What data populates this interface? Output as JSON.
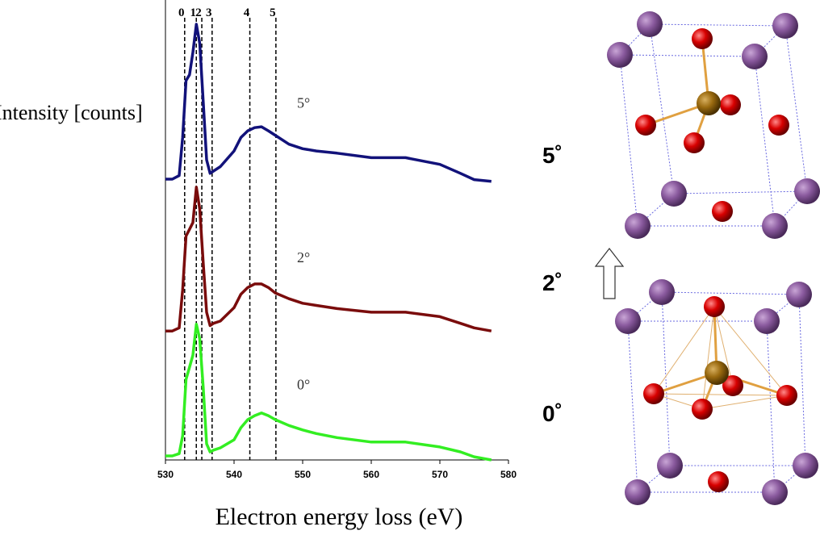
{
  "chart_data": {
    "type": "line",
    "x_label": "Electron energy loss (eV)",
    "y_label": "Intensity [counts]",
    "xlim": [
      530,
      580
    ],
    "xticks": [
      530,
      540,
      550,
      560,
      570,
      580
    ],
    "ylim": [
      0,
      100
    ],
    "x": [
      530,
      531,
      532,
      532.5,
      533,
      533.5,
      534,
      534.5,
      535,
      535.5,
      536,
      536.5,
      537,
      538,
      540,
      541,
      542,
      543,
      544,
      545,
      546,
      548,
      550,
      552,
      555,
      560,
      565,
      570,
      573,
      575,
      577.5
    ],
    "series": [
      {
        "name": "5°",
        "color": "#12127a",
        "values": [
          62.7,
          62.7,
          63.5,
          72,
          84.7,
          86,
          91,
          97.3,
          93,
          80,
          67,
          64,
          64.5,
          65.5,
          69,
          72,
          73.5,
          74.2,
          74.4,
          73.5,
          72.5,
          70.5,
          69.5,
          69,
          68.5,
          67.5,
          67.5,
          66,
          64,
          62.6,
          62.2
        ]
      },
      {
        "name": "2°",
        "color": "#7a0c0c",
        "values": [
          28.8,
          28.8,
          29.5,
          38,
          50,
          51.5,
          53,
          60.9,
          56,
          44,
          33,
          30,
          30.5,
          31,
          34,
          37,
          38.5,
          39.3,
          39.3,
          38.5,
          37.3,
          36,
          35,
          34.5,
          33.8,
          33,
          33,
          32,
          30.5,
          29.5,
          28.8
        ]
      },
      {
        "name": "0°",
        "color": "#33ee22",
        "values": [
          0.9,
          0.9,
          1.4,
          5.4,
          18,
          20.7,
          23.4,
          30.3,
          27,
          16.2,
          3.6,
          1.8,
          2.2,
          2.7,
          4.5,
          7.2,
          9,
          9.9,
          10.5,
          9.9,
          9,
          7.7,
          6.7,
          5.9,
          5,
          4,
          4,
          2.9,
          1.8,
          0.7,
          0
        ]
      }
    ],
    "markers": [
      {
        "label": "0",
        "x": 532.8
      },
      {
        "label": "1",
        "x": 534.5
      },
      {
        "label": "2",
        "x": 535.3
      },
      {
        "label": "3",
        "x": 536.8
      },
      {
        "label": "4",
        "x": 542.3
      },
      {
        "label": "5",
        "x": 546.1
      }
    ],
    "annotations": [
      "5˚",
      "2˚",
      "0˚"
    ]
  }
}
